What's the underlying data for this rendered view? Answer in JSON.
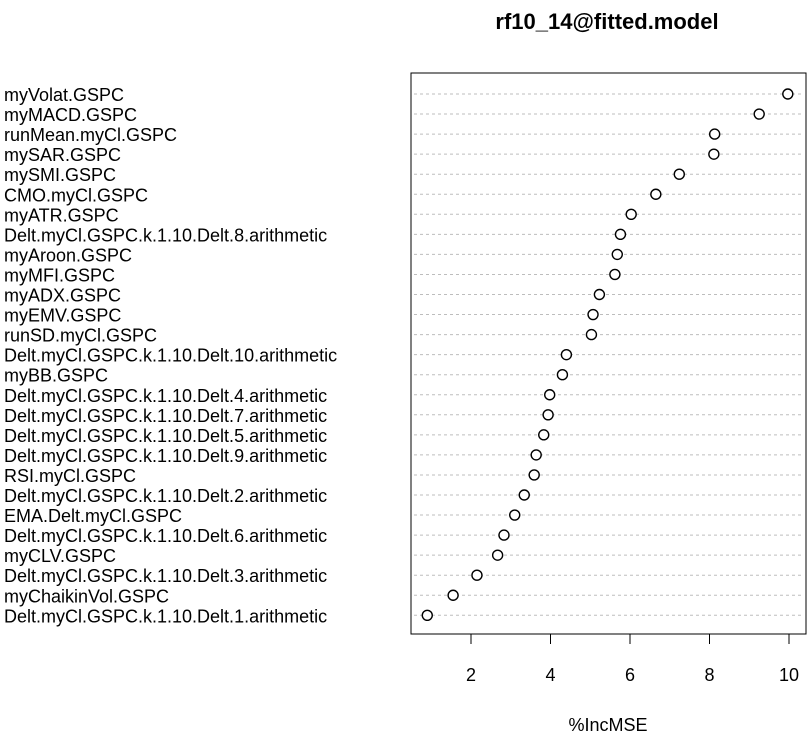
{
  "chart_data": {
    "type": "scatter",
    "title": "rf10_14@fitted.model",
    "xlabel": "%IncMSE",
    "ylabel": "",
    "xlim": [
      0.9,
      10.0
    ],
    "xticks": [
      "2",
      "4",
      "6",
      "8",
      "10"
    ],
    "grid": "horizontal dotted",
    "categories": [
      "myVolat.GSPC",
      "myMACD.GSPC",
      "runMean.myCl.GSPC",
      "mySAR.GSPC",
      "mySMI.GSPC",
      "CMO.myCl.GSPC",
      "myATR.GSPC",
      "Delt.myCl.GSPC.k.1.10.Delt.8.arithmetic",
      "myAroon.GSPC",
      "myMFI.GSPC",
      "myADX.GSPC",
      "myEMV.GSPC",
      "runSD.myCl.GSPC",
      "Delt.myCl.GSPC.k.1.10.Delt.10.arithmetic",
      "myBB.GSPC",
      "Delt.myCl.GSPC.k.1.10.Delt.4.arithmetic",
      "Delt.myCl.GSPC.k.1.10.Delt.7.arithmetic",
      "Delt.myCl.GSPC.k.1.10.Delt.5.arithmetic",
      "Delt.myCl.GSPC.k.1.10.Delt.9.arithmetic",
      "RSI.myCl.GSPC",
      "Delt.myCl.GSPC.k.1.10.Delt.2.arithmetic",
      "EMA.Delt.myCl.GSPC",
      "Delt.myCl.GSPC.k.1.10.Delt.6.arithmetic",
      "myCLV.GSPC",
      "Delt.myCl.GSPC.k.1.10.Delt.3.arithmetic",
      "myChaikinVol.GSPC",
      "Delt.myCl.GSPC.k.1.10.Delt.1.arithmetic"
    ],
    "values": [
      9.97,
      9.25,
      8.13,
      8.11,
      7.24,
      6.65,
      6.03,
      5.76,
      5.68,
      5.62,
      5.23,
      5.07,
      5.03,
      4.4,
      4.3,
      3.98,
      3.94,
      3.83,
      3.64,
      3.59,
      3.34,
      3.1,
      2.83,
      2.67,
      2.15,
      1.55,
      0.9
    ]
  }
}
